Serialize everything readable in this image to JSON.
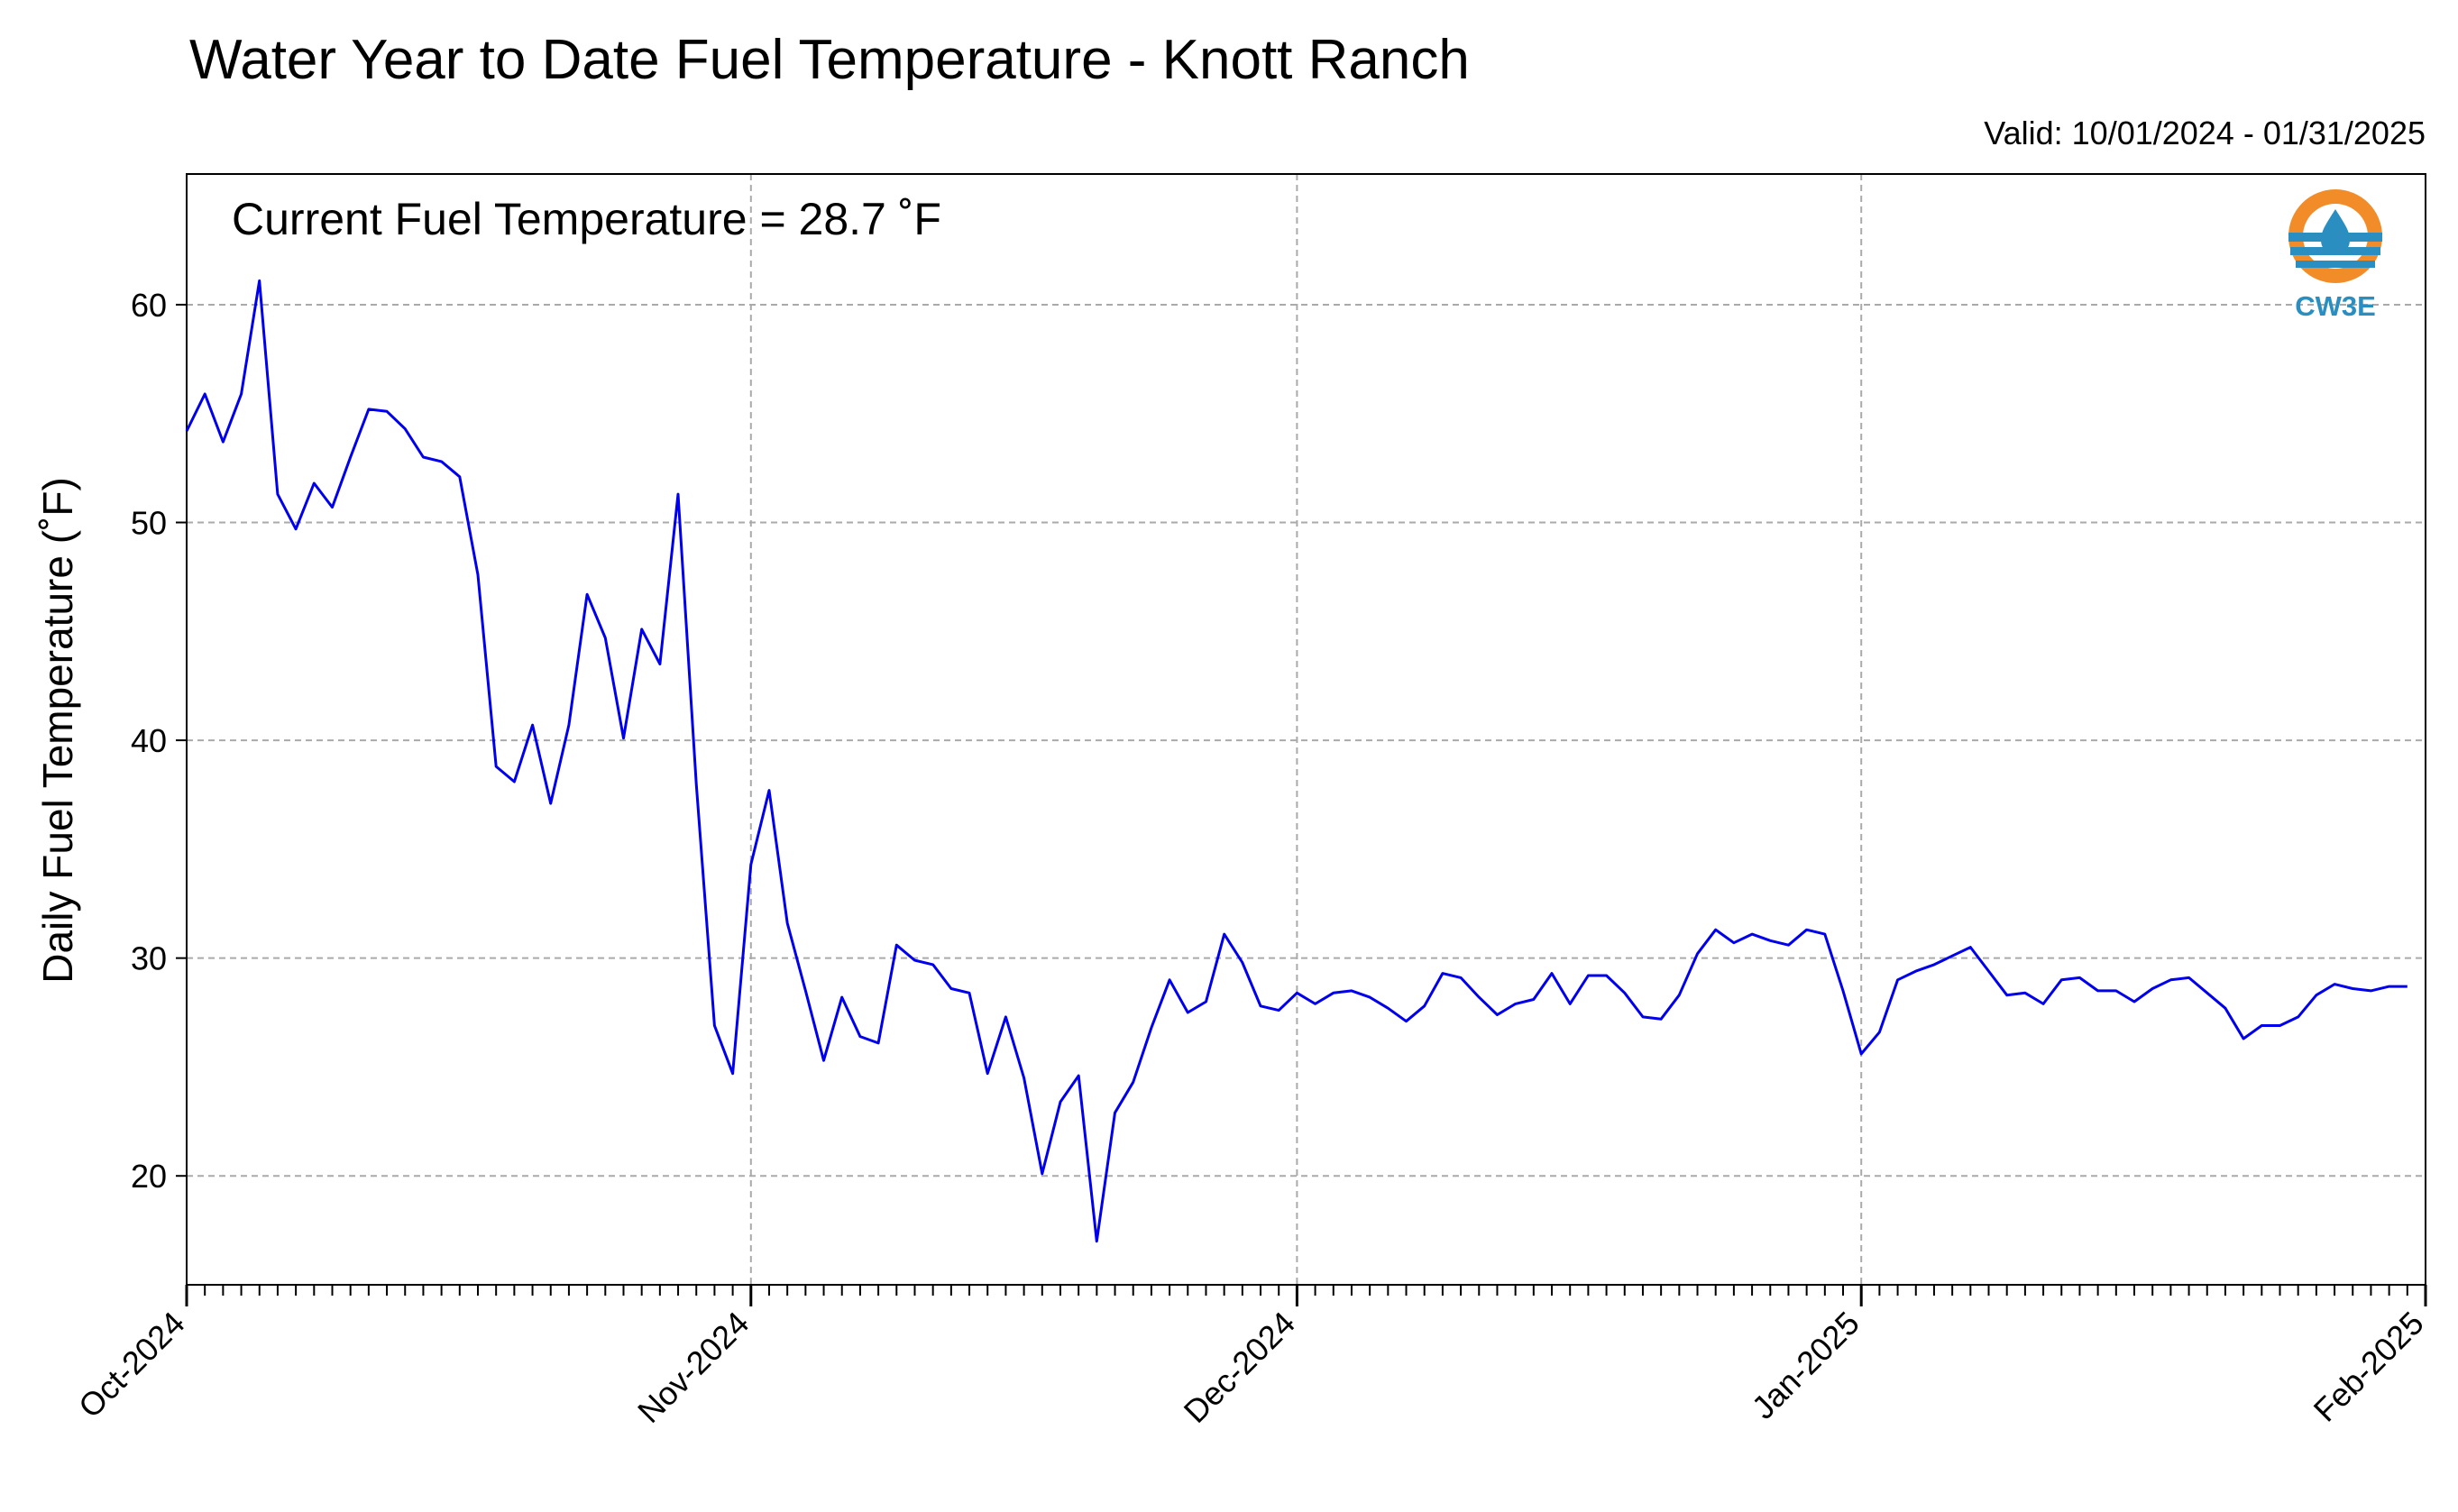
{
  "chart_data": {
    "type": "line",
    "title": "Water Year to Date Fuel Temperature - Knott Ranch",
    "subtitle": "Valid: 10/01/2024 - 01/31/2025",
    "annotation": "Current Fuel Temperature = 28.7 ˚F",
    "ylabel": "Daily Fuel Temperature (˚F)",
    "xlabel": "",
    "ylim": [
      15,
      66
    ],
    "xlim": [
      "2024-10-01",
      "2025-02-01"
    ],
    "y_ticks": [
      20,
      30,
      40,
      50,
      60
    ],
    "x_ticks": [
      {
        "date": "2024-10-01",
        "label": "Oct-2024"
      },
      {
        "date": "2024-11-01",
        "label": "Nov-2024"
      },
      {
        "date": "2024-12-01",
        "label": "Dec-2024"
      },
      {
        "date": "2025-01-01",
        "label": "Jan-2025"
      },
      {
        "date": "2025-02-01",
        "label": "Feb-2025"
      }
    ],
    "grid": true,
    "line_color": "#0000ee",
    "series": [
      {
        "x_start": "2024-10-01",
        "x_step_days": 1,
        "values": [
          54.2,
          55.9,
          53.7,
          55.9,
          61.1,
          51.3,
          49.7,
          51.8,
          50.7,
          53.0,
          55.2,
          55.1,
          54.3,
          53.0,
          52.8,
          52.1,
          47.6,
          38.8,
          38.1,
          40.7,
          37.1,
          40.7,
          46.7,
          44.7,
          40.1,
          45.1,
          43.5,
          51.3,
          38.0,
          26.9,
          24.7,
          34.3,
          37.7,
          31.6,
          28.5,
          25.3,
          28.2,
          26.4,
          26.1,
          30.6,
          29.9,
          29.7,
          28.6,
          28.4,
          24.7,
          27.3,
          24.5,
          20.1,
          23.4,
          24.6,
          17.0,
          22.9,
          24.3,
          26.8,
          29.0,
          27.5,
          28.0,
          31.1,
          29.8,
          27.8,
          27.6,
          28.4,
          27.9,
          28.4,
          28.5,
          28.2,
          27.7,
          27.1,
          27.8,
          29.3,
          29.1,
          28.2,
          27.4,
          27.9,
          28.1,
          29.3,
          27.9,
          29.2,
          29.2,
          28.4,
          27.3,
          27.2,
          28.3,
          30.2,
          31.3,
          30.7,
          31.1,
          30.8,
          30.6,
          31.3,
          31.1,
          28.5,
          25.6,
          26.6,
          29.0,
          29.4,
          29.7,
          30.1,
          30.5,
          29.4,
          28.3,
          28.4,
          27.9,
          29.0,
          29.1,
          28.5,
          28.5,
          28.0,
          28.6,
          29.0,
          29.1,
          28.4,
          27.7,
          26.3,
          26.9,
          26.9,
          27.3,
          28.3,
          28.8,
          28.6,
          28.5,
          28.7,
          28.7
        ]
      }
    ]
  },
  "logo": {
    "text": "CW3E",
    "colors": {
      "orange": "#f28c28",
      "blue": "#2a8fc0"
    }
  }
}
